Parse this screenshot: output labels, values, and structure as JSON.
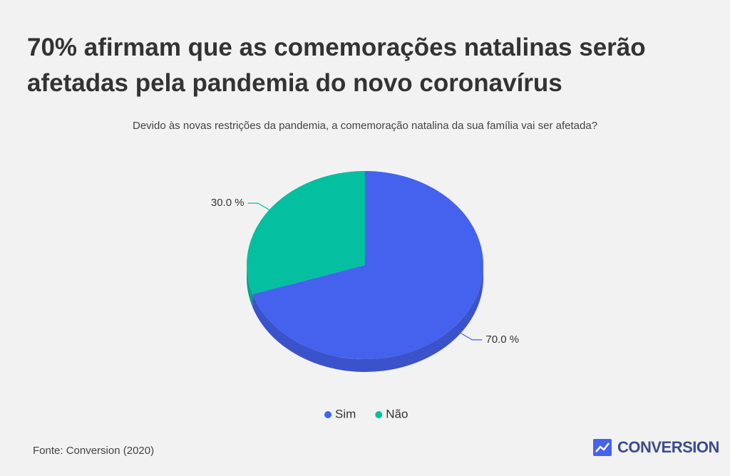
{
  "chart_data": {
    "type": "pie",
    "title": "70% afirmam que as comemorações natalinas serão afetadas pela pandemia do novo coronavírus",
    "subtitle": "Devido às novas restrições da pandemia, a comemoração natalina da sua família vai ser afetada?",
    "categories": [
      "Sim",
      "Não"
    ],
    "values": [
      70,
      30
    ],
    "value_labels": [
      "70.0 %",
      "30.0 %"
    ],
    "colors": [
      "#4562ee",
      "#04bfa0"
    ],
    "legend": "bottom"
  },
  "source": "Fonte: Conversion (2020)",
  "logo": "CONVERSION"
}
